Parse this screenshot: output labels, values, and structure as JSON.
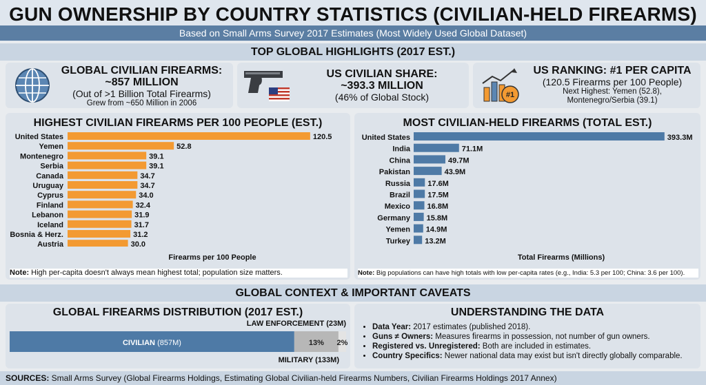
{
  "header": {
    "title": "GUN OWNERSHIP BY COUNTRY STATISTICS (CIVILIAN-HELD FIREARMS)",
    "subtitle": "Based on Small Arms Survey 2017 Estimates (Most Widely Used Global Dataset)"
  },
  "highlights": {
    "section_title": "TOP GLOBAL HIGHLIGHTS (2017 EST.)",
    "global": {
      "icon": "globe-icon",
      "title1": "GLOBAL CIVILIAN FIREARMS:",
      "title2": "~857 MILLION",
      "line": "(Out of >1 Billion Total Firearms)",
      "small": "Grew from ~650 Million in 2006"
    },
    "us_share": {
      "icon": "handgun-icon",
      "flag": "us-flag-icon",
      "title1": "US CIVILIAN SHARE:",
      "title2": "~393.3 MILLION",
      "line": "(46% of Global Stock)"
    },
    "us_rank": {
      "icon": "ranking-chart-icon",
      "badge": "#1",
      "title": "US RANKING: #1 PER CAPITA",
      "line": "(120.5 Firearms per 100 People)",
      "small1": "Next Highest: Yemen (52.8),",
      "small2": "Montenegro/Serbia (39.1)"
    }
  },
  "per_capita": {
    "note_label": "Note:",
    "note_text": " High per-capita doesn't always mean highest total; population size matters."
  },
  "totals": {
    "note_label": "Note:",
    "note_text": " Big populations can have high totals with low per-capita rates (e.g., India: 5.3 per 100; China: 3.6 per 100)."
  },
  "context": {
    "section_title": "GLOBAL CONTEXT & IMPORTANT CAVEATS",
    "distribution_title": "GLOBAL FIREARMS DISTRIBUTION (2017 EST.)",
    "law_label": "LAW ENFORCEMENT (23M)",
    "military_label": "MILITARY (133M)",
    "civilian_label": "CIVILIAN",
    "civilian_value": "(857M)",
    "military_pct": "13%",
    "law_pct": "2%",
    "understanding_title": "UNDERSTANDING THE DATA",
    "caveats": [
      {
        "label": "Data Year:",
        "text": " 2017 estimates (published 2018)."
      },
      {
        "label": "Guns ≠ Owners:",
        "text": " Measures firearms in possession, not number of gun owners."
      },
      {
        "label": "Registered vs. Unregistered:",
        "text": " Both are included in estimates."
      },
      {
        "label": "Country Specifics:",
        "text": " Newer national data may exist but isn't directly globally comparable."
      }
    ]
  },
  "footer": {
    "label": "SOURCES:",
    "text": " Small Arms Survey (Global Firearms Holdings, Estimating Global Civilian-held Firearms Numbers, Civilian Firearms Holdings 2017 Annex)"
  },
  "colors": {
    "orange": "#f39a32",
    "blue": "#4e7aa6",
    "gray": "#b7b7b7",
    "light": "#e4e4e4"
  },
  "chart_data": [
    {
      "type": "bar",
      "orientation": "horizontal",
      "title": "HIGHEST CIVILIAN FIREARMS PER 100 PEOPLE (EST.)",
      "xlabel": "Firearms per 100 People",
      "categories": [
        "United States",
        "Yemen",
        "Montenegro",
        "Serbia",
        "Canada",
        "Uruguay",
        "Cyprus",
        "Finland",
        "Lebanon",
        "Iceland",
        "Bosnia & Herz.",
        "Austria"
      ],
      "values": [
        120.5,
        52.8,
        39.1,
        39.1,
        34.7,
        34.7,
        34.0,
        32.4,
        31.9,
        31.7,
        31.2,
        30.0
      ],
      "value_labels": [
        "120.5",
        "52.8",
        "39.1",
        "39.1",
        "34.7",
        "34.7",
        "34.0",
        "32.4",
        "31.9",
        "31.7",
        "31.2",
        "30.0"
      ],
      "color": "#f39a32",
      "xlim": [
        0,
        125
      ],
      "grid": false
    },
    {
      "type": "bar",
      "orientation": "horizontal",
      "title": "MOST CIVILIAN-HELD FIREARMS (TOTAL EST.)",
      "xlabel": "Total Firearms (Millions)",
      "categories": [
        "United States",
        "India",
        "China",
        "Pakistan",
        "Russia",
        "Brazil",
        "Mexico",
        "Germany",
        "Yemen",
        "Turkey"
      ],
      "values": [
        393.3,
        71.1,
        49.7,
        43.9,
        17.6,
        17.5,
        16.8,
        15.8,
        14.9,
        13.2
      ],
      "value_labels": [
        "393.3M",
        "71.1M",
        "49.7M",
        "43.9M",
        "17.6M",
        "17.5M",
        "16.8M",
        "15.8M",
        "14.9M",
        "13.2M"
      ],
      "color": "#4e7aa6",
      "xlim": [
        0,
        400
      ],
      "grid": false
    },
    {
      "type": "bar",
      "orientation": "stacked-horizontal",
      "title": "GLOBAL FIREARMS DISTRIBUTION (2017 EST.)",
      "categories": [
        "Civilian",
        "Military",
        "Law Enforcement"
      ],
      "values": [
        857,
        133,
        23
      ],
      "unit": "Millions",
      "grid": false
    }
  ]
}
